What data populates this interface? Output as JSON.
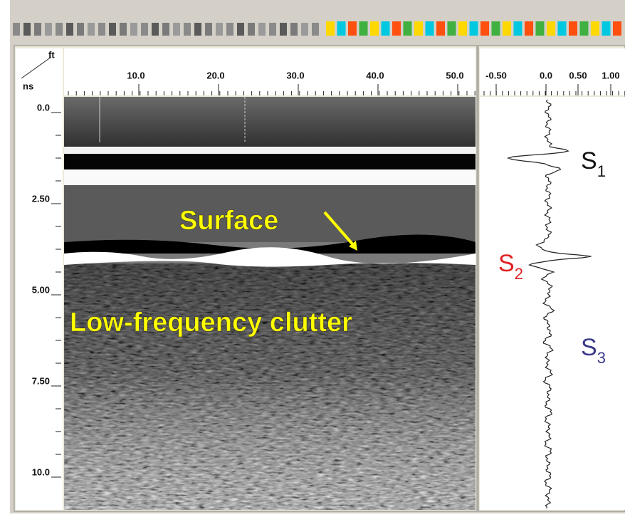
{
  "scan_axis": {
    "unit": "ft",
    "ticks": [
      "10.0",
      "20.0",
      "30.0",
      "40.0",
      "50.0"
    ]
  },
  "time_axis": {
    "unit": "ns",
    "ticks": [
      "0.0",
      "2.50",
      "5.00",
      "7.50",
      "10.0"
    ]
  },
  "trace_axis": {
    "ticks": [
      "-0.50",
      "0.0",
      "0.50",
      "1.00"
    ]
  },
  "annotations": {
    "surface": "Surface",
    "clutter": "Low-frequency clutter"
  },
  "signals": [
    {
      "letter": "S",
      "sub": "1"
    },
    {
      "letter": "S",
      "sub": "2"
    },
    {
      "letter": "S",
      "sub": "3"
    }
  ]
}
